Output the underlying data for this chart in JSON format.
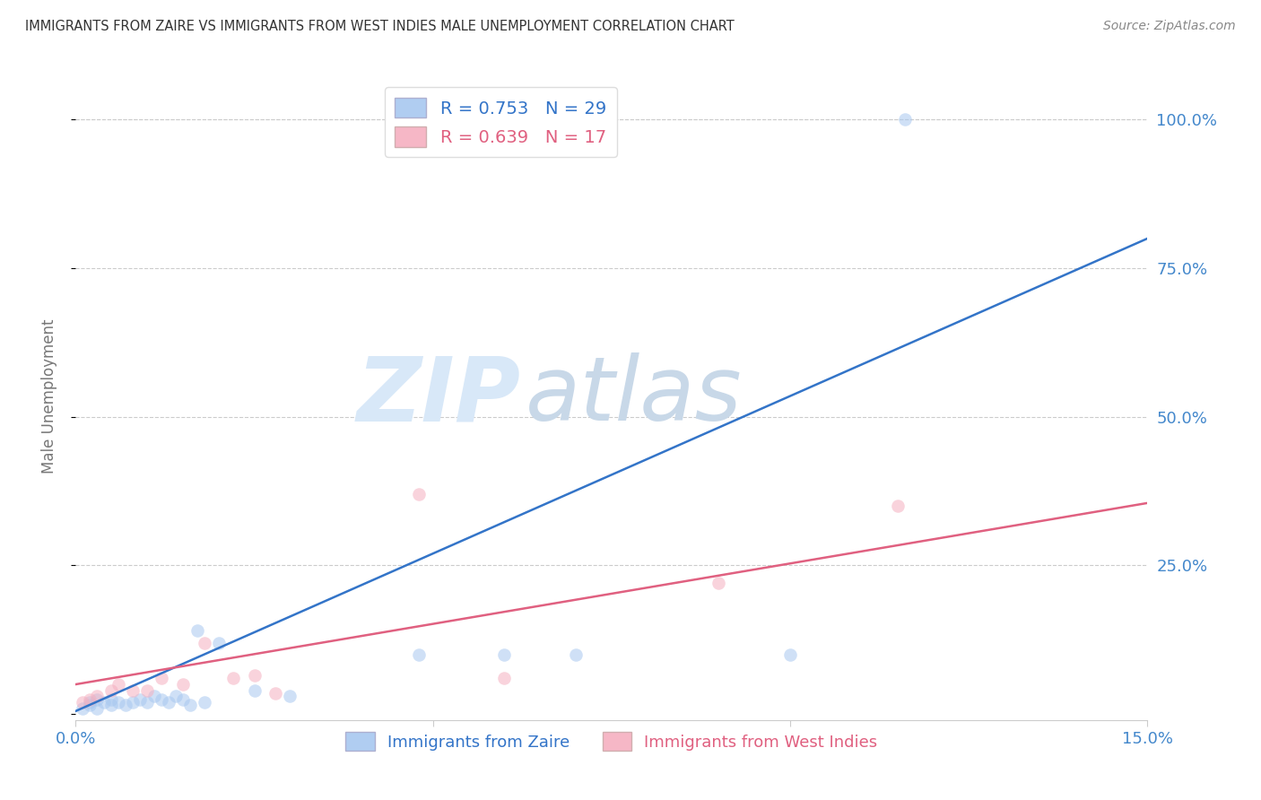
{
  "title": "IMMIGRANTS FROM ZAIRE VS IMMIGRANTS FROM WEST INDIES MALE UNEMPLOYMENT CORRELATION CHART",
  "source": "Source: ZipAtlas.com",
  "ylabel": "Male Unemployment",
  "xlim": [
    0.0,
    0.15
  ],
  "ylim": [
    -0.01,
    1.08
  ],
  "yticks": [
    0.0,
    0.25,
    0.5,
    0.75,
    1.0
  ],
  "ytick_labels": [
    "",
    "25.0%",
    "50.0%",
    "75.0%",
    "100.0%"
  ],
  "zaire_R": 0.753,
  "zaire_N": 29,
  "wi_R": 0.639,
  "wi_N": 17,
  "zaire_color": "#A8C8F0",
  "zaire_line_color": "#3374C8",
  "wi_color": "#F5B0C0",
  "wi_line_color": "#E06080",
  "background_color": "#FFFFFF",
  "grid_color": "#CCCCCC",
  "zaire_x": [
    0.001,
    0.002,
    0.002,
    0.003,
    0.003,
    0.004,
    0.005,
    0.005,
    0.006,
    0.007,
    0.008,
    0.009,
    0.01,
    0.011,
    0.012,
    0.013,
    0.014,
    0.015,
    0.016,
    0.017,
    0.018,
    0.02,
    0.025,
    0.03,
    0.048,
    0.06,
    0.07,
    0.1,
    0.116
  ],
  "zaire_y": [
    0.01,
    0.015,
    0.02,
    0.01,
    0.025,
    0.02,
    0.015,
    0.025,
    0.02,
    0.015,
    0.02,
    0.025,
    0.02,
    0.03,
    0.025,
    0.02,
    0.03,
    0.025,
    0.015,
    0.14,
    0.02,
    0.12,
    0.04,
    0.03,
    0.1,
    0.1,
    0.1,
    0.1,
    1.0
  ],
  "wi_x": [
    0.001,
    0.002,
    0.003,
    0.005,
    0.006,
    0.008,
    0.01,
    0.012,
    0.015,
    0.018,
    0.022,
    0.025,
    0.028,
    0.048,
    0.06,
    0.09,
    0.115
  ],
  "wi_y": [
    0.02,
    0.025,
    0.03,
    0.04,
    0.05,
    0.04,
    0.04,
    0.06,
    0.05,
    0.12,
    0.06,
    0.065,
    0.035,
    0.37,
    0.06,
    0.22,
    0.35
  ],
  "zaire_trend_x": [
    0.0,
    0.15
  ],
  "zaire_trend_y": [
    0.005,
    0.8
  ],
  "wi_trend_x": [
    0.0,
    0.15
  ],
  "wi_trend_y": [
    0.05,
    0.355
  ],
  "watermark_zip": "ZIP",
  "watermark_atlas": "atlas",
  "watermark_color": "#D8E8F8",
  "watermark_color2": "#C8D8E8",
  "axis_label_color": "#4488CC",
  "title_color": "#333333",
  "marker_size": 110,
  "marker_alpha": 0.55,
  "line_width": 1.8
}
